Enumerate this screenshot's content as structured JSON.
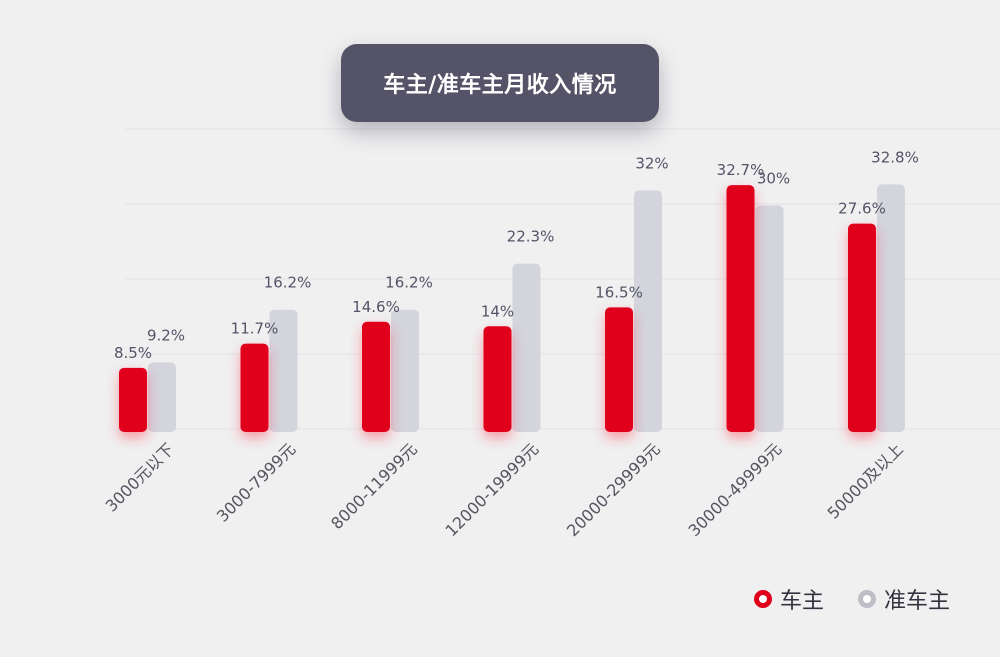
{
  "chart_data": {
    "type": "bar",
    "title": "车主/准车主月收入情况",
    "categories": [
      "3000元以下",
      "3000-7999元",
      "8000-11999元",
      "12000-19999元",
      "20000-29999元",
      "30000-49999元",
      "50000及以上"
    ],
    "series": [
      {
        "name": "车主",
        "values": [
          8.5,
          11.7,
          14.6,
          14,
          16.5,
          32.7,
          27.6
        ],
        "labels": [
          "8.5%",
          "11.7%",
          "14.6%",
          "14%",
          "16.5%",
          "32.7%",
          "27.6%"
        ],
        "color": "#e0001b"
      },
      {
        "name": "准车主",
        "values": [
          9.2,
          16.2,
          16.2,
          22.3,
          32,
          30,
          32.8
        ],
        "labels": [
          "9.2%",
          "16.2%",
          "16.2%",
          "22.3%",
          "32%",
          "30%",
          "32.8%"
        ],
        "color": "#d3d4dc"
      }
    ],
    "ylim": [
      0,
      40
    ],
    "grid": true,
    "legend": "bottom-right"
  },
  "colors": {
    "background": "#f0f0f1",
    "title_box": "#545368",
    "label": "#545468"
  }
}
